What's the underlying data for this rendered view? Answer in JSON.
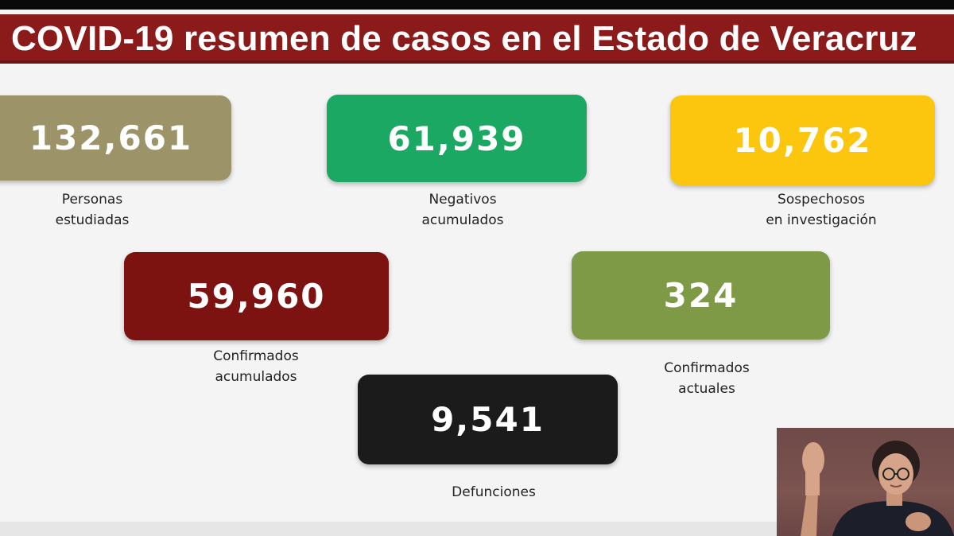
{
  "title": "COVID-19 resumen de casos en el Estado de Veracruz",
  "cards": {
    "personas": {
      "value": "132,661",
      "label_line1": "Personas",
      "label_line2": "estudiadas",
      "color": "#9c9468"
    },
    "negativos": {
      "value": "61,939",
      "label_line1": "Negativos",
      "label_line2": "acumulados",
      "color": "#1aa862"
    },
    "sospechosos": {
      "value": "10,762",
      "label_line1": "Sospechosos",
      "label_line2": "en investigación",
      "color": "#fcc60e"
    },
    "confirmados_acumulados": {
      "value": "59,960",
      "label_line1": "Confirmados",
      "label_line2": "acumulados",
      "color": "#7d1310"
    },
    "confirmados_actuales": {
      "value": "324",
      "label_line1": "Confirmados",
      "label_line2": "actuales",
      "color": "#7f9a47"
    },
    "defunciones": {
      "value": "9,541",
      "label_line1": "Defunciones",
      "color": "#1b1b1b"
    }
  },
  "interpreter": {
    "icon": "sign-language-interpreter-icon"
  }
}
